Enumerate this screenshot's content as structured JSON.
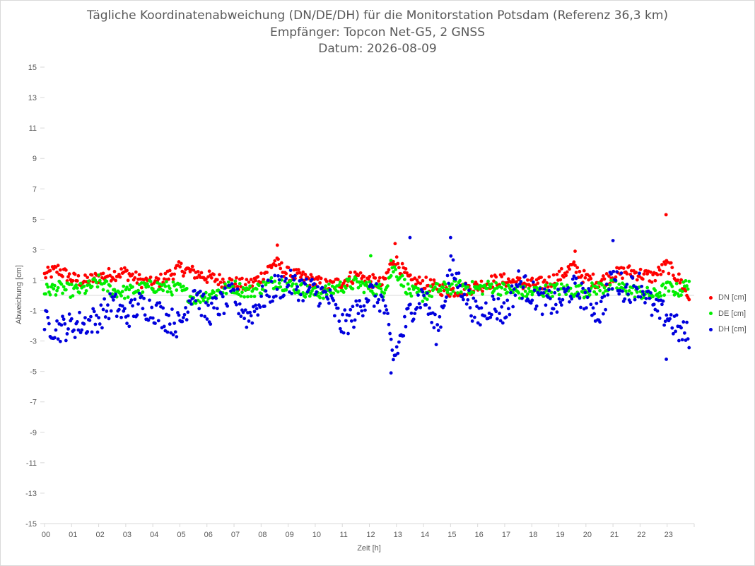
{
  "chart_data": {
    "type": "scatter",
    "title_lines": [
      "Tägliche Koordinatenabweichung (DN/DE/DH) für die Monitorstation Potsdam (Referenz 36,3 km)",
      "Empfänger: Topcon Net-G5, 2 GNSS",
      "Datum: 2026-08-09"
    ],
    "xlabel": "Zeit [h]",
    "ylabel": "Abweichung [cm]",
    "xlim": [
      0,
      24
    ],
    "ylim": [
      -15,
      15
    ],
    "x_tick_labels": [
      "00",
      "01",
      "02",
      "03",
      "04",
      "05",
      "06",
      "07",
      "08",
      "09",
      "10",
      "11",
      "12",
      "13",
      "14",
      "15",
      "16",
      "17",
      "18",
      "19",
      "20",
      "21",
      "22",
      "23"
    ],
    "y_ticks": [
      15,
      13,
      11,
      9,
      7,
      5,
      3,
      1,
      -1,
      -3,
      -5,
      -7,
      -9,
      -11,
      -13,
      -15
    ],
    "grid": false,
    "legend_position": "right",
    "series": [
      {
        "name": "DN [cm]",
        "color": "#ff0000",
        "samples": [
          [
            0,
            1.3
          ],
          [
            0.5,
            1.7
          ],
          [
            1,
            1.1
          ],
          [
            1.5,
            0.9
          ],
          [
            2,
            1.2
          ],
          [
            2.5,
            1.4
          ],
          [
            3,
            1.5
          ],
          [
            3.5,
            1.0
          ],
          [
            4,
            0.7
          ],
          [
            4.5,
            1.2
          ],
          [
            5,
            1.8
          ],
          [
            5.5,
            1.5
          ],
          [
            6,
            1.2
          ],
          [
            6.5,
            1.0
          ],
          [
            7,
            0.8
          ],
          [
            7.5,
            0.6
          ],
          [
            8,
            1.2
          ],
          [
            8.5,
            2.2
          ],
          [
            9,
            1.4
          ],
          [
            9.5,
            1.2
          ],
          [
            10,
            0.9
          ],
          [
            10.5,
            0.6
          ],
          [
            11,
            0.9
          ],
          [
            11.5,
            1.3
          ],
          [
            12,
            1.0
          ],
          [
            12.5,
            0.7
          ],
          [
            12.9,
            2.5
          ],
          [
            13.5,
            0.9
          ],
          [
            14,
            0.8
          ],
          [
            14.5,
            0.5
          ],
          [
            15,
            0.3
          ],
          [
            15.5,
            0.4
          ],
          [
            16,
            0.6
          ],
          [
            16.5,
            0.9
          ],
          [
            17,
            1.0
          ],
          [
            17.5,
            0.8
          ],
          [
            18,
            0.7
          ],
          [
            18.5,
            0.8
          ],
          [
            19,
            1.2
          ],
          [
            19.5,
            1.9
          ],
          [
            20,
            1.1
          ],
          [
            20.5,
            0.9
          ],
          [
            21,
            1.3
          ],
          [
            21.5,
            1.6
          ],
          [
            22,
            1.4
          ],
          [
            22.5,
            1.2
          ],
          [
            23,
            2.0
          ],
          [
            23.5,
            0.9
          ],
          [
            23.8,
            -0.2
          ]
        ],
        "outliers": [
          [
            22.96,
            5.3
          ],
          [
            8.6,
            3.3
          ],
          [
            12.95,
            3.4
          ],
          [
            19.6,
            2.9
          ]
        ]
      },
      {
        "name": "DE [cm]",
        "color": "#00ee00",
        "samples": [
          [
            0,
            0.3
          ],
          [
            0.5,
            0.5
          ],
          [
            1,
            0.3
          ],
          [
            1.5,
            0.4
          ],
          [
            2,
            0.9
          ],
          [
            2.5,
            0.3
          ],
          [
            3,
            0.2
          ],
          [
            3.5,
            0.4
          ],
          [
            4,
            0.6
          ],
          [
            4.5,
            0.5
          ],
          [
            5,
            0.4
          ],
          [
            5.5,
            -0.2
          ],
          [
            6,
            0.0
          ],
          [
            6.5,
            0.3
          ],
          [
            7,
            0.6
          ],
          [
            7.5,
            0.2
          ],
          [
            8,
            0.5
          ],
          [
            8.5,
            0.9
          ],
          [
            9,
            0.7
          ],
          [
            9.5,
            0.4
          ],
          [
            10,
            0.1
          ],
          [
            10.5,
            0.3
          ],
          [
            11,
            0.6
          ],
          [
            11.5,
            0.8
          ],
          [
            12,
            0.5
          ],
          [
            12.5,
            0.3
          ],
          [
            12.9,
            1.8
          ],
          [
            13.5,
            0.2
          ],
          [
            14,
            0.0
          ],
          [
            14.5,
            0.4
          ],
          [
            15,
            0.5
          ],
          [
            15.5,
            0.6
          ],
          [
            16,
            0.4
          ],
          [
            16.5,
            0.6
          ],
          [
            17,
            0.4
          ],
          [
            17.5,
            0.2
          ],
          [
            18,
            0.2
          ],
          [
            18.5,
            0.3
          ],
          [
            19,
            0.4
          ],
          [
            19.5,
            0.3
          ],
          [
            20,
            0.3
          ],
          [
            20.5,
            0.5
          ],
          [
            21,
            0.6
          ],
          [
            21.5,
            0.4
          ],
          [
            22,
            0.2
          ],
          [
            22.5,
            0.0
          ],
          [
            23,
            0.5
          ],
          [
            23.5,
            0.3
          ],
          [
            23.8,
            0.9
          ]
        ],
        "outliers": [
          [
            12.05,
            2.6
          ],
          [
            12.8,
            2.3
          ]
        ]
      },
      {
        "name": "DH [cm]",
        "color": "#0000dd",
        "samples": [
          [
            0,
            -1.8
          ],
          [
            0.5,
            -2.2
          ],
          [
            1,
            -2.0
          ],
          [
            1.5,
            -1.8
          ],
          [
            2,
            -1.5
          ],
          [
            2.5,
            -0.5
          ],
          [
            3,
            -1.4
          ],
          [
            3.5,
            -0.6
          ],
          [
            4,
            -0.9
          ],
          [
            4.5,
            -1.5
          ],
          [
            5,
            -2.0
          ],
          [
            5.5,
            0.5
          ],
          [
            6,
            -1.2
          ],
          [
            6.5,
            -0.6
          ],
          [
            7,
            0.0
          ],
          [
            7.5,
            -1.5
          ],
          [
            8,
            -0.3
          ],
          [
            8.5,
            0.5
          ],
          [
            9,
            0.8
          ],
          [
            9.5,
            0.5
          ],
          [
            10,
            0.3
          ],
          [
            10.5,
            -0.2
          ],
          [
            11,
            -2.0
          ],
          [
            11.5,
            -1.2
          ],
          [
            12,
            0.2
          ],
          [
            12.5,
            -0.4
          ],
          [
            12.9,
            -4.2
          ],
          [
            13.5,
            -1.0
          ],
          [
            14,
            0.1
          ],
          [
            14.5,
            -2.5
          ],
          [
            15,
            1.8
          ],
          [
            15.5,
            0.3
          ],
          [
            16,
            -1.5
          ],
          [
            16.5,
            -0.6
          ],
          [
            17,
            -1.2
          ],
          [
            17.5,
            0.9
          ],
          [
            18,
            0.1
          ],
          [
            18.5,
            -0.5
          ],
          [
            19,
            -0.5
          ],
          [
            19.5,
            0.5
          ],
          [
            20,
            -0.2
          ],
          [
            20.5,
            -1.2
          ],
          [
            21,
            1.2
          ],
          [
            21.5,
            0.3
          ],
          [
            22,
            0.8
          ],
          [
            22.5,
            -1.0
          ],
          [
            23,
            -1.3
          ],
          [
            23.5,
            -2.5
          ],
          [
            23.8,
            -2.6
          ]
        ],
        "outliers": [
          [
            12.8,
            -5.1
          ],
          [
            15.0,
            3.8
          ],
          [
            21.0,
            3.6
          ],
          [
            13.5,
            3.8
          ],
          [
            22.97,
            -4.2
          ]
        ]
      }
    ]
  }
}
